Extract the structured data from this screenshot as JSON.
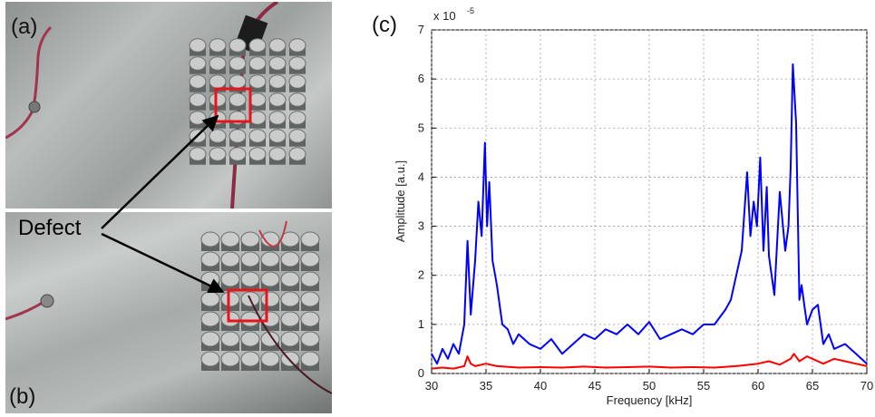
{
  "panels": {
    "a": "(a)",
    "b": "(b)",
    "c": "(c)"
  },
  "annotation": {
    "defect_label": "Defect"
  },
  "colors": {
    "blue_series": "#0000ff",
    "red_series": "#ff0000",
    "defect_box": "#e8141c"
  },
  "chart_data": {
    "type": "line",
    "title": "",
    "xlabel": "Frequency [kHz]",
    "ylabel": "Amplitude [a.u.]",
    "exponent_label": "x 10",
    "exponent_power": "-5",
    "xlim": [
      30,
      70
    ],
    "ylim": [
      0,
      7
    ],
    "grid": true,
    "x_ticks": [
      "30",
      "35",
      "40",
      "45",
      "50",
      "55",
      "60",
      "65",
      "70"
    ],
    "y_ticks": [
      "0",
      "1",
      "2",
      "3",
      "4",
      "5",
      "6",
      "7"
    ],
    "series": [
      {
        "color": "blue",
        "x": [
          30,
          30.5,
          31,
          31.5,
          32,
          32.5,
          33,
          33.3,
          33.6,
          34,
          34.3,
          34.6,
          34.9,
          35.1,
          35.3,
          35.6,
          36,
          36.5,
          37,
          37.5,
          38,
          39,
          40,
          41,
          42,
          43,
          44,
          45,
          46,
          47,
          48,
          49,
          50,
          51,
          52,
          53,
          54,
          55,
          56,
          57,
          57.5,
          58,
          58.5,
          59,
          59.3,
          59.6,
          59.9,
          60.2,
          60.5,
          60.8,
          61,
          61.5,
          62,
          62.5,
          62.8,
          63,
          63.2,
          63.5,
          63.8,
          64,
          64.5,
          65,
          65.5,
          66,
          66.5,
          67,
          68,
          69,
          70
        ],
        "y": [
          0.4,
          0.2,
          0.5,
          0.3,
          0.6,
          0.4,
          1.0,
          2.7,
          1.2,
          2.3,
          3.5,
          2.8,
          4.7,
          3.0,
          3.9,
          2.3,
          1.8,
          1.0,
          0.9,
          0.6,
          0.8,
          0.6,
          0.5,
          0.7,
          0.4,
          0.6,
          0.8,
          0.7,
          0.9,
          0.8,
          1.0,
          0.8,
          1.05,
          0.7,
          0.8,
          0.9,
          0.8,
          1.0,
          1.0,
          1.3,
          1.5,
          2.0,
          2.5,
          4.1,
          2.8,
          3.5,
          3.0,
          4.4,
          2.5,
          3.8,
          2.4,
          1.6,
          3.7,
          2.5,
          3.0,
          4.2,
          6.3,
          5.1,
          1.5,
          1.8,
          1.0,
          1.3,
          1.4,
          0.6,
          0.8,
          0.5,
          0.6,
          0.4,
          0.2
        ]
      },
      {
        "color": "red",
        "x": [
          30,
          31,
          32,
          33,
          33.3,
          33.6,
          34,
          35,
          36,
          38,
          40,
          42,
          44,
          46,
          48,
          50,
          52,
          54,
          56,
          58,
          60,
          61,
          62,
          63,
          63.3,
          63.8,
          64.5,
          65,
          66,
          67,
          68,
          69,
          70
        ],
        "y": [
          0.1,
          0.12,
          0.1,
          0.15,
          0.35,
          0.2,
          0.15,
          0.2,
          0.15,
          0.12,
          0.13,
          0.12,
          0.14,
          0.12,
          0.13,
          0.14,
          0.12,
          0.13,
          0.12,
          0.15,
          0.2,
          0.25,
          0.18,
          0.3,
          0.4,
          0.25,
          0.35,
          0.3,
          0.2,
          0.3,
          0.25,
          0.2,
          0.15
        ]
      }
    ]
  }
}
